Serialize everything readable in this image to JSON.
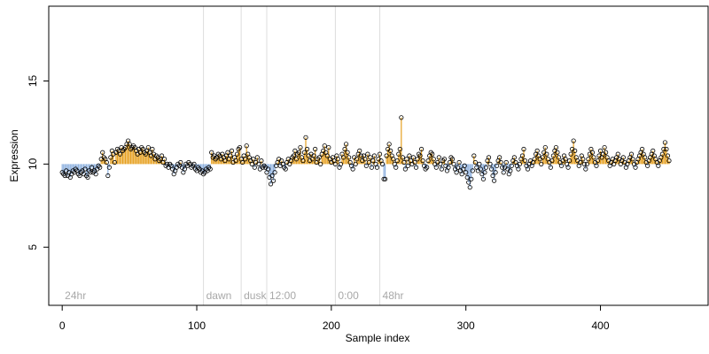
{
  "chart_data": {
    "type": "scatter",
    "title": "",
    "xlabel": "Sample index",
    "ylabel": "Expression",
    "xlim": [
      -10,
      480
    ],
    "ylim": [
      1.5,
      19.5
    ],
    "x_ticks": [
      0,
      100,
      200,
      300,
      400
    ],
    "y_ticks": [
      5,
      10,
      15
    ],
    "baseline": 10,
    "grid": false,
    "legend": "none",
    "colors": {
      "above": "#e6a020",
      "below": "#8fb2e0",
      "point_stroke": "#000000",
      "region_line": "#dddddd",
      "region_label": "#a8a8a8"
    },
    "regions": [
      {
        "label": "24hr",
        "start": 0
      },
      {
        "label": "dawn",
        "start": 105
      },
      {
        "label": "dusk",
        "start": 133
      },
      {
        "label": "12:00",
        "start": 152
      },
      {
        "label": "0:00",
        "start": 203
      },
      {
        "label": "48hr",
        "start": 236
      }
    ],
    "y": [
      9.5,
      9.4,
      9.3,
      9.6,
      9.3,
      9.5,
      9.2,
      9.4,
      9.6,
      9.5,
      9.7,
      9.6,
      9.4,
      9.3,
      9.5,
      9.6,
      9.4,
      9.7,
      9.3,
      9.2,
      9.6,
      9.5,
      9.8,
      9.5,
      9.6,
      9.4,
      9.7,
      9.9,
      9.8,
      10.3,
      10.7,
      10.4,
      10.3,
      10.1,
      9.3,
      9.8,
      10.4,
      10.8,
      10.6,
      10.1,
      10.7,
      10.9,
      10.8,
      10.6,
      11.0,
      10.8,
      10.9,
      11.0,
      11.2,
      11.4,
      11.2,
      10.9,
      11.0,
      11.1,
      11.0,
      10.8,
      10.6,
      10.9,
      10.7,
      11.0,
      10.9,
      10.7,
      10.6,
      10.8,
      11.0,
      10.7,
      10.5,
      10.9,
      10.6,
      10.3,
      10.5,
      10.4,
      10.2,
      10.3,
      10.5,
      10.1,
      10.3,
      9.9,
      10.0,
      9.8,
      10.0,
      9.9,
      9.7,
      9.4,
      9.6,
      9.8,
      10.0,
      9.9,
      10.1,
      9.8,
      9.5,
      9.7,
      10.0,
      9.9,
      10.1,
      10.0,
      9.8,
      9.9,
      10.0,
      9.7,
      9.6,
      9.8,
      9.7,
      9.5,
      9.6,
      9.4,
      9.5,
      9.7,
      9.6,
      9.8,
      9.7,
      10.7,
      10.4,
      10.5,
      10.3,
      10.4,
      10.6,
      10.5,
      10.3,
      10.6,
      10.4,
      10.2,
      10.5,
      10.7,
      10.3,
      10.5,
      10.8,
      10.1,
      10.4,
      10.2,
      10.6,
      10.9,
      11.0,
      10.3,
      10.1,
      10.5,
      10.3,
      11.1,
      10.6,
      10.4,
      10.2,
      10.0,
      10.3,
      9.8,
      10.1,
      10.4,
      10.0,
      9.7,
      10.2,
      9.8,
      9.9,
      9.8,
      9.5,
      9.7,
      9.2,
      8.8,
      9.3,
      9.0,
      9.5,
      9.9,
      10.1,
      10.3,
      9.9,
      10.2,
      10.0,
      9.8,
      9.7,
      10.1,
      10.3,
      10.0,
      10.2,
      10.4,
      10.5,
      10.8,
      10.3,
      10.6,
      10.7,
      11.0,
      10.4,
      10.2,
      10.7,
      11.6,
      10.9,
      10.5,
      10.2,
      10.6,
      10.3,
      10.5,
      10.9,
      10.1,
      10.3,
      10.4,
      10.0,
      10.6,
      10.8,
      11.1,
      10.7,
      10.5,
      11.0,
      10.3,
      10.1,
      10.4,
      10.2,
      10.0,
      10.5,
      10.3,
      9.8,
      10.0,
      10.6,
      10.4,
      10.9,
      11.2,
      10.7,
      10.4,
      10.1,
      9.9,
      9.7,
      10.4,
      10.0,
      10.3,
      10.6,
      10.8,
      10.5,
      10.2,
      10.5,
      10.3,
      9.9,
      10.6,
      10.1,
      10.4,
      9.8,
      10.2,
      10.5,
      10.0,
      9.8,
      10.3,
      10.6,
      10.2,
      10.0,
      9.1,
      9.1,
      10.5,
      10.9,
      11.2,
      10.8,
      10.5,
      10.3,
      10.0,
      9.8,
      10.2,
      10.6,
      10.9,
      12.8,
      10.4,
      10.1,
      9.7,
      10.3,
      9.9,
      10.5,
      10.2,
      10.0,
      10.4,
      10.1,
      9.8,
      10.3,
      10.6,
      10.5,
      10.9,
      10.2,
      9.9,
      9.7,
      9.8,
      10.2,
      10.5,
      10.7,
      10.6,
      10.3,
      10.0,
      9.8,
      10.1,
      10.4,
      10.0,
      9.7,
      10.2,
      10.3,
      9.9,
      9.6,
      9.8,
      10.1,
      10.4,
      10.3,
      10.0,
      9.7,
      9.5,
      9.8,
      10.1,
      9.6,
      9.4,
      9.7,
      9.9,
      9.5,
      9.2,
      8.9,
      8.6,
      9.1,
      9.6,
      10.5,
      10.1,
      9.8,
      9.6,
      10.0,
      9.7,
      9.4,
      9.1,
      9.5,
      9.8,
      10.2,
      10.4,
      10.0,
      9.7,
      9.3,
      9.0,
      9.5,
      9.9,
      10.2,
      10.4,
      10.1,
      9.8,
      9.5,
      9.8,
      10.1,
      9.7,
      9.4,
      9.6,
      9.9,
      10.2,
      10.4,
      10.1,
      9.9,
      9.7,
      10.0,
      10.3,
      10.5,
      10.9,
      10.2,
      9.9,
      9.7,
      10.0,
      10.2,
      9.9,
      10.1,
      10.3,
      10.6,
      10.8,
      10.5,
      10.3,
      10.0,
      10.4,
      10.7,
      11.0,
      10.6,
      10.3,
      10.1,
      9.8,
      10.2,
      10.5,
      10.8,
      11.0,
      10.7,
      10.4,
      10.1,
      9.9,
      10.2,
      10.5,
      10.3,
      10.0,
      9.8,
      10.2,
      10.6,
      10.9,
      11.4,
      10.8,
      10.4,
      10.2,
      9.9,
      10.1,
      10.5,
      10.3,
      10.0,
      9.7,
      10.0,
      10.3,
      10.6,
      10.9,
      10.7,
      10.4,
      10.1,
      9.9,
      10.2,
      10.5,
      10.8,
      10.4,
      10.6,
      11.0,
      10.7,
      10.4,
      10.2,
      9.9,
      10.1,
      10.3,
      10.0,
      10.2,
      10.4,
      10.6,
      10.3,
      10.0,
      10.2,
      10.4,
      10.1,
      9.8,
      10.0,
      10.2,
      10.4,
      10.6,
      10.3,
      10.0,
      9.8,
      10.1,
      10.3,
      10.5,
      10.7,
      10.9,
      10.6,
      10.4,
      10.1,
      9.9,
      10.2,
      10.4,
      10.6,
      10.8,
      10.5,
      10.3,
      10.1,
      9.9,
      10.2,
      10.4,
      10.6,
      10.9,
      11.3,
      10.9,
      10.5,
      10.2
    ]
  }
}
